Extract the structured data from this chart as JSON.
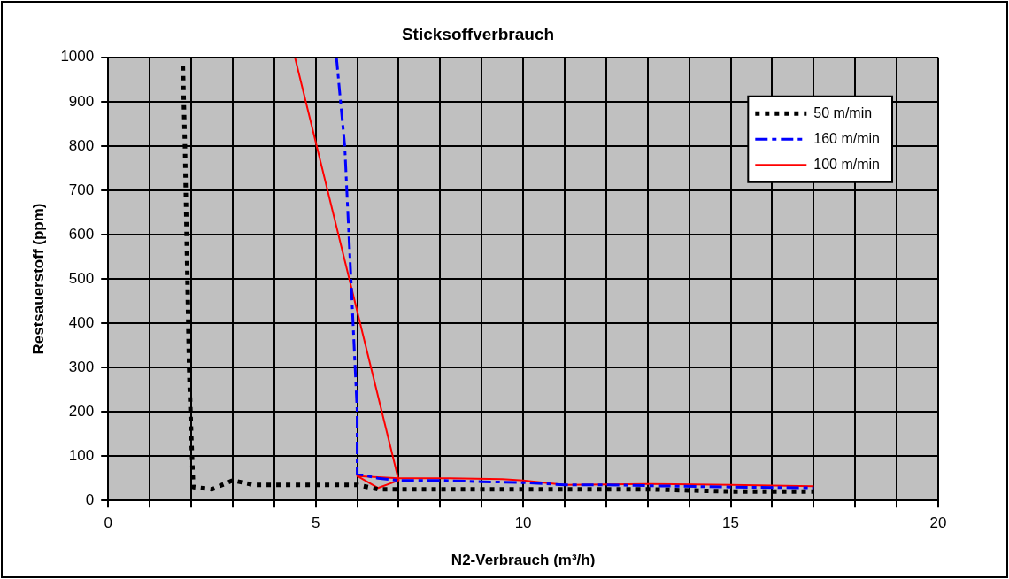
{
  "chart_data": {
    "type": "line",
    "title": "Sticksoffverbrauch",
    "xlabel": "N2-Verbrauch (m³/h)",
    "ylabel": "Restsauerstoff (ppm)",
    "xlim": [
      0,
      20
    ],
    "xticks": [
      0,
      {
        "value": 1,
        "label": null
      },
      {
        "value": 2,
        "label": null
      },
      {
        "value": 3,
        "label": null
      },
      {
        "value": 4,
        "label": null
      },
      5,
      {
        "value": 6,
        "label": null
      },
      {
        "value": 7,
        "label": null
      },
      {
        "value": 8,
        "label": null
      },
      {
        "value": 9,
        "label": null
      },
      10,
      {
        "value": 11,
        "label": null
      },
      {
        "value": 12,
        "label": null
      },
      {
        "value": 13,
        "label": null
      },
      {
        "value": 14,
        "label": null
      },
      15,
      {
        "value": 16,
        "label": null
      },
      {
        "value": 17,
        "label": null
      },
      {
        "value": 18,
        "label": null
      },
      {
        "value": 19,
        "label": null
      },
      20
    ],
    "ylim": [
      0,
      1000
    ],
    "yticks": [
      0,
      100,
      200,
      300,
      400,
      500,
      600,
      700,
      800,
      900,
      1000
    ],
    "grid": true,
    "legend": "top right",
    "marker": "none",
    "series": [
      {
        "name": "50 m/min",
        "color": "#000000",
        "line_style": "dotted",
        "x": [
          1.8,
          1.85,
          1.9,
          1.95,
          2.0,
          2.05,
          2.5,
          3,
          3.5,
          4,
          5,
          6,
          6.5,
          7,
          8,
          10,
          12,
          13,
          15,
          16,
          17
        ],
        "values": [
          980,
          800,
          550,
          300,
          150,
          30,
          25,
          45,
          35,
          35,
          35,
          35,
          25,
          25,
          25,
          25,
          25,
          25,
          20,
          20,
          20
        ]
      },
      {
        "name": "160 m/min",
        "color": "#0000ff",
        "line_style": "dashed",
        "x": [
          5.5,
          5.6,
          5.7,
          5.8,
          5.9,
          6.0,
          6.0,
          6.5,
          7,
          8,
          9,
          10,
          11,
          12,
          13,
          15,
          17
        ],
        "values": [
          1000,
          900,
          800,
          600,
          400,
          200,
          60,
          50,
          45,
          45,
          42,
          40,
          35,
          35,
          33,
          30,
          28
        ]
      },
      {
        "name": "100 m/min",
        "color": "#ff0000",
        "line_style": "solid",
        "x": [
          4.5,
          7,
          6.5,
          6,
          7,
          8,
          9.5,
          10,
          11,
          13,
          15,
          17
        ],
        "values": [
          1000,
          45,
          28,
          55,
          50,
          50,
          48,
          45,
          35,
          37,
          35,
          32
        ]
      }
    ]
  }
}
